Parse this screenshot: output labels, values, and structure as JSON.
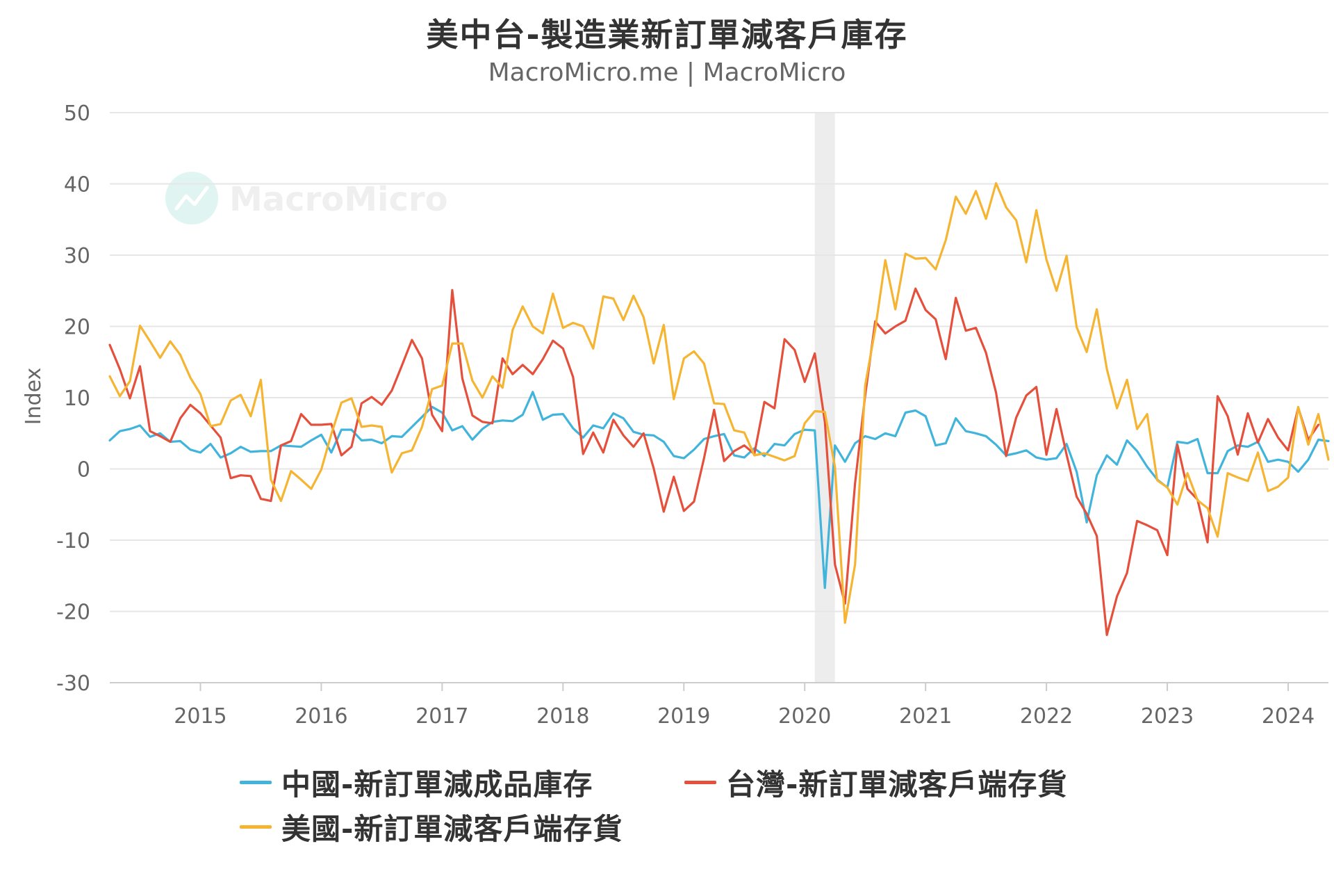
{
  "chart_data": {
    "type": "line",
    "title": "美中台-製造業新訂單減客戶庫存",
    "subtitle": "MacroMicro.me | MacroMicro",
    "watermark": "MacroMicro",
    "ylabel": "Index",
    "ylim": [
      -30,
      50
    ],
    "yticks": [
      -30,
      -20,
      -10,
      0,
      10,
      20,
      30,
      40,
      50
    ],
    "xticks": [
      "2015",
      "2016",
      "2017",
      "2018",
      "2019",
      "2020",
      "2021",
      "2022",
      "2023",
      "2024"
    ],
    "x_start": "2014-04",
    "grid": "horizontal",
    "legend_position": "bottom",
    "shaded_period": {
      "start": "2020-02",
      "end": "2020-04"
    },
    "series": [
      {
        "name": "中國-新訂單減成品庫存",
        "color": "#41b4dc",
        "values": [
          4,
          5.3,
          5.6,
          6.1,
          4.5,
          5,
          3.8,
          3.9,
          2.7,
          2.3,
          3.5,
          1.6,
          2.2,
          3.1,
          2.4,
          2.5,
          2.5,
          3.3,
          3.2,
          3.1,
          4,
          4.8,
          2.3,
          5.5,
          5.5,
          4,
          4.1,
          3.6,
          4.6,
          4.5,
          5.9,
          7.3,
          8.7,
          7.9,
          5.4,
          6,
          4.1,
          5.6,
          6.6,
          6.8,
          6.7,
          7.6,
          10.8,
          6.9,
          7.6,
          7.7,
          5.7,
          4.4,
          6.1,
          5.7,
          7.8,
          7.1,
          5.2,
          4.8,
          4.7,
          3.8,
          1.8,
          1.5,
          2.7,
          4.2,
          4.6,
          4.9,
          1.9,
          1.6,
          2.9,
          1.8,
          3.5,
          3.3,
          4.9,
          5.5,
          5.4,
          -16.7,
          3.3,
          1,
          3.6,
          4.6,
          4.2,
          5,
          4.6,
          7.9,
          8.2,
          7.4,
          3.3,
          3.6,
          7.1,
          5.3,
          5,
          4.6,
          3.4,
          1.9,
          2.2,
          2.6,
          1.6,
          1.3,
          1.5,
          3.5,
          -0.4,
          -7.5,
          -0.9,
          1.9,
          0.6,
          4,
          2.5,
          0.3,
          -1.5,
          -2.6,
          3.8,
          3.6,
          4.2,
          -0.6,
          -0.6,
          2.5,
          3.3,
          3.1,
          3.8,
          1,
          1.3,
          1,
          -0.4,
          1.3,
          4.1,
          3.9
        ]
      },
      {
        "name": "台灣-新訂單減客戶端存貨",
        "color": "#e5503c",
        "values": [
          17.4,
          14,
          9.9,
          14.4,
          5.3,
          4.6,
          3.8,
          7.1,
          9,
          7.8,
          6.1,
          4.4,
          -1.3,
          -0.9,
          -1,
          -4.2,
          -4.5,
          3.3,
          3.9,
          7.7,
          6.2,
          6.2,
          6.3,
          1.9,
          3.1,
          9.2,
          10.1,
          9,
          11,
          14.5,
          18.1,
          15.5,
          7.6,
          5.3,
          25.1,
          12.7,
          7.5,
          6.6,
          6.4,
          15.5,
          13.3,
          14.6,
          13.3,
          15.4,
          18,
          16.9,
          12.9,
          2.1,
          5.1,
          2.3,
          6.9,
          4.7,
          3.1,
          5,
          0.1,
          -6,
          -1.1,
          -5.9,
          -4.6,
          1.5,
          8.3,
          1.1,
          2.5,
          3.3,
          2.1,
          9.4,
          8.5,
          18.2,
          16.7,
          12.2,
          16.2,
          6.6,
          -13.4,
          -18.9,
          -2,
          10.3,
          20.7,
          19,
          20,
          20.8,
          25.3,
          22.3,
          21,
          15.4,
          24,
          19.4,
          19.8,
          16.3,
          10.7,
          1.8,
          7.2,
          10.3,
          11.5,
          2,
          8.4,
          2,
          -3.9,
          -6.3,
          -9.4,
          -23.3,
          -17.9,
          -14.6,
          -7.3,
          -7.9,
          -8.6,
          -12.1,
          3.4,
          -2.8,
          -4.3,
          -10.3,
          10.2,
          7.4,
          2,
          7.8,
          3.7,
          7,
          4.4,
          2.6,
          8.6,
          4.1,
          6.2
        ]
      },
      {
        "name": "美國-新訂單減客戶端存貨",
        "color": "#f5b431",
        "values": [
          13,
          10.2,
          12.3,
          20.1,
          17.9,
          15.6,
          17.9,
          16,
          12.8,
          10.5,
          6,
          6.3,
          9.6,
          10.4,
          7.4,
          12.5,
          -1.5,
          -4.5,
          -0.3,
          -1.5,
          -2.8,
          -0.1,
          4.9,
          9.3,
          9.9,
          5.9,
          6.1,
          5.9,
          -0.5,
          2.2,
          2.6,
          5.9,
          11.2,
          11.7,
          17.6,
          17.6,
          12.4,
          10,
          13,
          11.4,
          19.5,
          22.8,
          20,
          19,
          24.6,
          19.8,
          20.5,
          20,
          16.9,
          24.2,
          23.9,
          20.9,
          24.3,
          21.3,
          14.8,
          20.2,
          9.8,
          15.5,
          16.5,
          14.8,
          9.2,
          9.1,
          5.4,
          5.1,
          1.9,
          2.2,
          1.7,
          1.2,
          1.8,
          6.4,
          8.1,
          8,
          0.3,
          -21.6,
          -13.4,
          11.7,
          19.6,
          29.3,
          22.4,
          30.2,
          29.5,
          29.6,
          28,
          32.1,
          38.2,
          35.8,
          39,
          35.1,
          40.1,
          36.7,
          34.9,
          29,
          36.3,
          29.4,
          25,
          29.9,
          19.9,
          16.4,
          22.4,
          14,
          8.5,
          12.5,
          5.6,
          7.7,
          -1.6,
          -2.6,
          -5,
          -0.6,
          -4.4,
          -5.5,
          -9.5,
          -0.6,
          -1.2,
          -1.7,
          2.3,
          -3.1,
          -2.5,
          -1.2,
          8.7,
          3.4,
          7.7,
          1.3
        ]
      }
    ]
  }
}
